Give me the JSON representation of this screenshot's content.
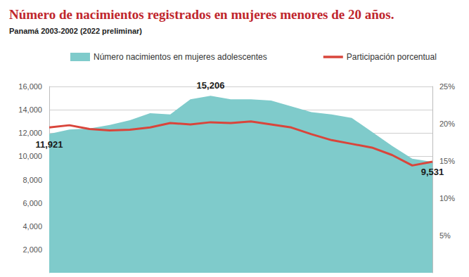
{
  "chart_data": {
    "type": "line",
    "title": "Número de nacimientos registrados en mujeres menores de 20 años.",
    "subtitle": "Panamá 2003-2002 (2022 preliminar)",
    "categories": [
      null,
      null,
      null,
      null,
      null,
      null,
      null,
      null,
      null,
      null,
      null,
      null,
      null,
      null,
      null,
      null,
      null,
      null,
      null,
      null
    ],
    "series": [
      {
        "name": "Número nacimientos en mujeres adolescentes",
        "type": "area",
        "color": "#7fcbcb",
        "values": [
          11921,
          12300,
          12400,
          12700,
          13100,
          13700,
          13600,
          14900,
          15206,
          14900,
          14900,
          14800,
          14300,
          13800,
          13600,
          13300,
          12100,
          10900,
          9800,
          9531
        ],
        "value_labels": [
          "11,921",
          null,
          null,
          null,
          null,
          null,
          null,
          null,
          "15,206",
          null,
          null,
          null,
          null,
          null,
          null,
          null,
          null,
          null,
          null,
          "9,531"
        ]
      },
      {
        "name": "Participación porcentual",
        "type": "line",
        "color": "#d9453b",
        "axis": "y2",
        "values": [
          19.5,
          19.8,
          19.3,
          19.1,
          19.2,
          19.5,
          20.1,
          19.9,
          20.2,
          20.1,
          20.3,
          19.9,
          19.5,
          18.6,
          17.8,
          17.3,
          16.8,
          15.8,
          14.4,
          14.9
        ]
      }
    ],
    "ylim": [
      0,
      16000
    ],
    "yticks": [
      {
        "value": 2000,
        "label": "2,000"
      },
      {
        "value": 4000,
        "label": "4,000"
      },
      {
        "value": 6000,
        "label": "6,000"
      },
      {
        "value": 8000,
        "label": "8,000"
      },
      {
        "value": 10000,
        "label": "10,000"
      },
      {
        "value": 12000,
        "label": "12,000"
      },
      {
        "value": 14000,
        "label": "14,000"
      },
      {
        "value": 16000,
        "label": "16,000"
      }
    ],
    "y2lim": [
      0,
      25
    ],
    "y2ticks": [
      {
        "value": 5,
        "label": "5%"
      },
      {
        "value": 10,
        "label": "10%"
      },
      {
        "value": 15,
        "label": "15%"
      },
      {
        "value": 20,
        "label": "20%"
      },
      {
        "value": 25,
        "label": "25%"
      }
    ],
    "grid": true,
    "legend": "top",
    "data_labels": true,
    "tick_labels": "y"
  }
}
